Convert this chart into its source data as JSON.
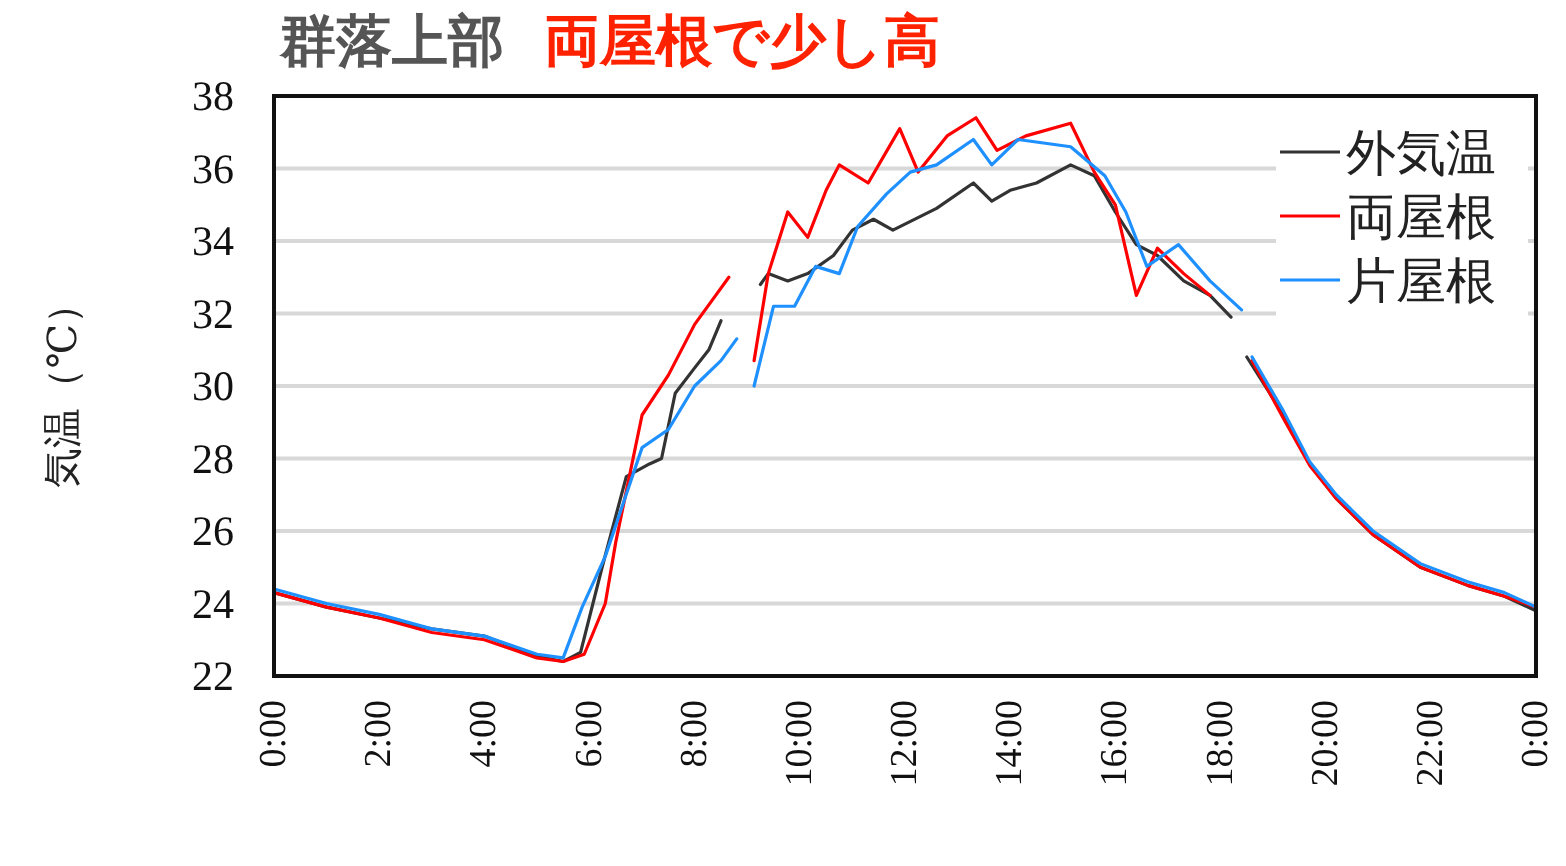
{
  "chart_data": {
    "type": "line",
    "title": "群落上部",
    "subtitle": "両屋根で少し高",
    "ylabel": "気温（℃）",
    "xlim": [
      0,
      24
    ],
    "ylim": [
      22,
      38
    ],
    "xticks": [
      {
        "value": 0,
        "label": "0:00"
      },
      {
        "value": 2,
        "label": "2:00"
      },
      {
        "value": 4,
        "label": "4:00"
      },
      {
        "value": 6,
        "label": "6:00"
      },
      {
        "value": 8,
        "label": "8:00"
      },
      {
        "value": 10,
        "label": "10:00"
      },
      {
        "value": 12,
        "label": "12:00"
      },
      {
        "value": 14,
        "label": "14:00"
      },
      {
        "value": 16,
        "label": "16:00"
      },
      {
        "value": 18,
        "label": "18:00"
      },
      {
        "value": 20,
        "label": "20:00"
      },
      {
        "value": 22,
        "label": "22:00"
      },
      {
        "value": 24,
        "label": "0:00"
      }
    ],
    "yticks": [
      22,
      24,
      26,
      28,
      30,
      32,
      34,
      36,
      38
    ],
    "grid": "y",
    "legend": "top right",
    "line_style": "solid",
    "marker": "none",
    "series": [
      {
        "name": "外気温",
        "color": "#333333",
        "x": [
          0,
          1,
          2,
          3,
          4,
          5,
          5.5,
          5.83,
          6.24,
          6.7,
          7.14,
          7.37,
          7.63,
          8.0,
          8.27,
          8.5,
          8.8,
          9.25,
          9.4,
          9.77,
          10.15,
          10.64,
          11.0,
          11.4,
          11.77,
          12.6,
          13.3,
          13.65,
          14.0,
          14.5,
          15.15,
          15.6,
          16.0,
          16.4,
          16.8,
          17.3,
          17.8,
          18.2,
          18.35,
          18.5,
          19.2,
          19.7,
          20.2,
          20.9,
          21.8,
          22.7,
          23.4,
          24
        ],
        "values": [
          24.3,
          23.9,
          23.6,
          23.3,
          23.1,
          22.55,
          22.4,
          22.65,
          25.0,
          27.5,
          27.85,
          28.0,
          29.8,
          30.5,
          31.0,
          31.8,
          null,
          32.8,
          33.1,
          32.9,
          33.1,
          33.6,
          34.3,
          34.6,
          34.3,
          34.9,
          35.6,
          35.1,
          35.4,
          35.6,
          36.1,
          35.8,
          34.8,
          33.9,
          33.6,
          32.9,
          32.5,
          31.9,
          null,
          30.8,
          29.2,
          27.85,
          26.9,
          25.9,
          25.0,
          24.5,
          24.2,
          23.8
        ]
      },
      {
        "name": "両屋根",
        "color": "#ff0000",
        "x": [
          0,
          1,
          2,
          3,
          4,
          5,
          5.5,
          5.9,
          6.3,
          6.5,
          7.0,
          7.5,
          8.0,
          8.4,
          8.65,
          8.9,
          9.13,
          9.4,
          9.77,
          10.15,
          10.5,
          10.75,
          11.3,
          11.9,
          12.25,
          12.8,
          13.35,
          13.75,
          14.3,
          15.15,
          15.6,
          16.0,
          16.4,
          16.8,
          17.3,
          17.8,
          18.2,
          18.6,
          19.2,
          19.7,
          20.2,
          20.9,
          21.8,
          22.7,
          23.4,
          24
        ],
        "values": [
          24.3,
          23.9,
          23.6,
          23.2,
          23.0,
          22.5,
          22.4,
          22.6,
          24.0,
          25.7,
          29.2,
          30.3,
          31.7,
          32.5,
          33.0,
          null,
          30.7,
          33.1,
          34.8,
          34.1,
          35.4,
          36.1,
          35.6,
          37.1,
          35.9,
          36.9,
          37.4,
          36.5,
          36.9,
          37.25,
          35.9,
          35.0,
          32.5,
          33.8,
          33.1,
          32.5,
          null,
          30.7,
          29.1,
          27.8,
          26.9,
          25.9,
          25.0,
          24.5,
          24.2,
          23.9
        ]
      },
      {
        "name": "片屋根",
        "color": "#1e90ff",
        "x": [
          0,
          1,
          2,
          3,
          4,
          5,
          5.5,
          5.86,
          6.3,
          7.0,
          7.5,
          8.0,
          8.5,
          8.8,
          9.0,
          9.13,
          9.5,
          9.9,
          10.3,
          10.75,
          11.1,
          11.65,
          12.1,
          12.6,
          13.3,
          13.65,
          14.15,
          15.15,
          15.8,
          16.2,
          16.6,
          17.2,
          17.8,
          18.4,
          18.5,
          18.6,
          19.2,
          19.7,
          20.2,
          20.9,
          21.8,
          22.7,
          23.4,
          24
        ],
        "values": [
          24.4,
          24.0,
          23.7,
          23.3,
          23.1,
          22.6,
          22.5,
          23.9,
          25.3,
          28.3,
          28.8,
          30.0,
          30.7,
          31.3,
          null,
          30.0,
          32.2,
          32.2,
          33.3,
          33.1,
          34.4,
          35.3,
          35.9,
          36.1,
          36.8,
          36.1,
          36.8,
          36.6,
          35.8,
          34.8,
          33.3,
          33.9,
          32.9,
          32.1,
          null,
          30.8,
          29.3,
          27.9,
          27.0,
          26.0,
          25.1,
          24.6,
          24.3,
          23.9
        ]
      }
    ]
  }
}
